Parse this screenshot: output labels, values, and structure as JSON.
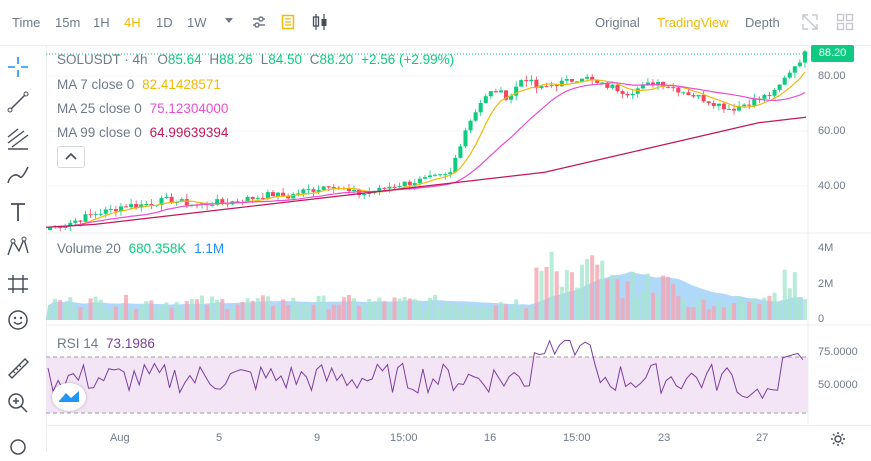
{
  "toolbar": {
    "intervals": [
      "Time",
      "15m",
      "1H",
      "4H",
      "1D",
      "1W"
    ],
    "active_interval": "4H",
    "views": [
      "Original",
      "TradingView",
      "Depth"
    ],
    "active_view": "TradingView",
    "accent": "#f0b90b"
  },
  "legend": {
    "symbol": "SOLUSDT · 4h",
    "o_label": "O",
    "o": "85.64",
    "h_label": "H",
    "h": "88.26",
    "l_label": "L",
    "l": "84.50",
    "c_label": "C",
    "c": "88.20",
    "change": "+2.56 (+2.99%)",
    "ma7_label": "MA 7 close 0",
    "ma7": "82.41428571",
    "ma25_label": "MA 25 close 0",
    "ma25": "75.12304000",
    "ma99_label": "MA 99 close 0",
    "ma99": "64.99639394"
  },
  "volume_legend": {
    "label": "Volume 20",
    "v1": "680.358K",
    "v2": "1.1M"
  },
  "rsi_legend": {
    "label": "RSI 14",
    "value": "73.1986"
  },
  "price_tag": "88.20",
  "price_axis": [
    "80.00",
    "60.00",
    "40.00"
  ],
  "volume_axis": [
    "4M",
    "2M",
    "0"
  ],
  "rsi_axis": [
    "75.0000",
    "50.0000"
  ],
  "time_axis": [
    "Aug",
    "5",
    "9",
    "15:00",
    "16",
    "15:00",
    "23",
    "27"
  ],
  "colors": {
    "up": "#0ecb81",
    "down": "#f6465d",
    "ma7": "#f0b90b",
    "ma25": "#e84fd5",
    "ma99": "#c2185b",
    "rsi": "#7b3fa0",
    "rsi_band": "#f3e5f5",
    "vol_ma": "#8fc8f5"
  },
  "chart_data": {
    "type": "candlestick",
    "price_ticks": [
      40,
      60,
      80
    ],
    "candles_summary": "SOLUSDT 4h, rising from ~25 to ~88",
    "close_path": [
      25,
      26,
      28,
      30,
      31,
      33,
      33,
      34,
      35,
      34,
      33,
      34,
      34,
      35,
      36,
      37,
      36,
      38,
      39,
      41,
      38,
      37,
      38,
      40,
      41,
      42,
      43,
      44,
      60,
      70,
      75,
      72,
      80,
      75,
      77,
      78,
      80,
      77,
      76,
      74,
      76,
      78,
      76,
      74,
      72,
      70,
      68,
      70,
      72,
      74,
      82,
      88
    ],
    "ma99_path": [
      25,
      25.5,
      26,
      27,
      28,
      29,
      30,
      31,
      32,
      33,
      34,
      35,
      36,
      37,
      38,
      39,
      40,
      41,
      42,
      43,
      44,
      45,
      47,
      49,
      51,
      53,
      55,
      57,
      59,
      61,
      63,
      64,
      65
    ]
  }
}
